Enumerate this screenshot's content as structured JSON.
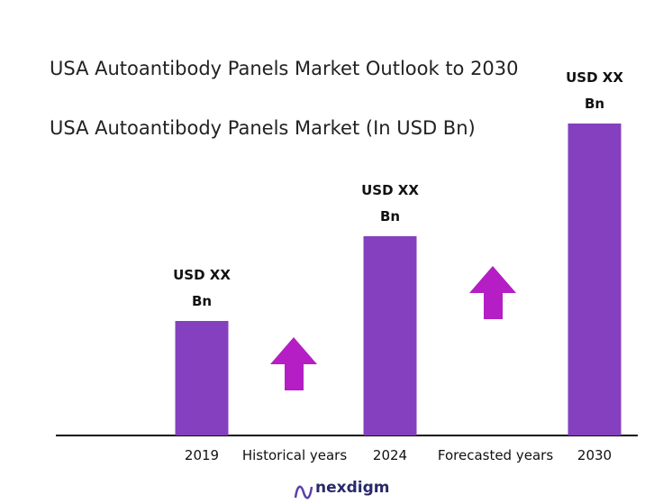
{
  "chart_data": {
    "type": "bar",
    "title": "USA Autoantibody Panels Market Outlook to 2030",
    "subtitle": "USA Autoantibody Panels Market (In USD Bn)",
    "categories": [
      "2019",
      "2024",
      "2030"
    ],
    "values": [
      127,
      221,
      346
    ],
    "value_labels": [
      "USD XX Bn",
      "USD XX Bn",
      "USD XX Bn"
    ],
    "color": "#8540bf",
    "ylim": [
      0,
      346
    ],
    "annotations": [
      "Historical years",
      "Forecasted years"
    ],
    "brand": "nexdigm"
  }
}
